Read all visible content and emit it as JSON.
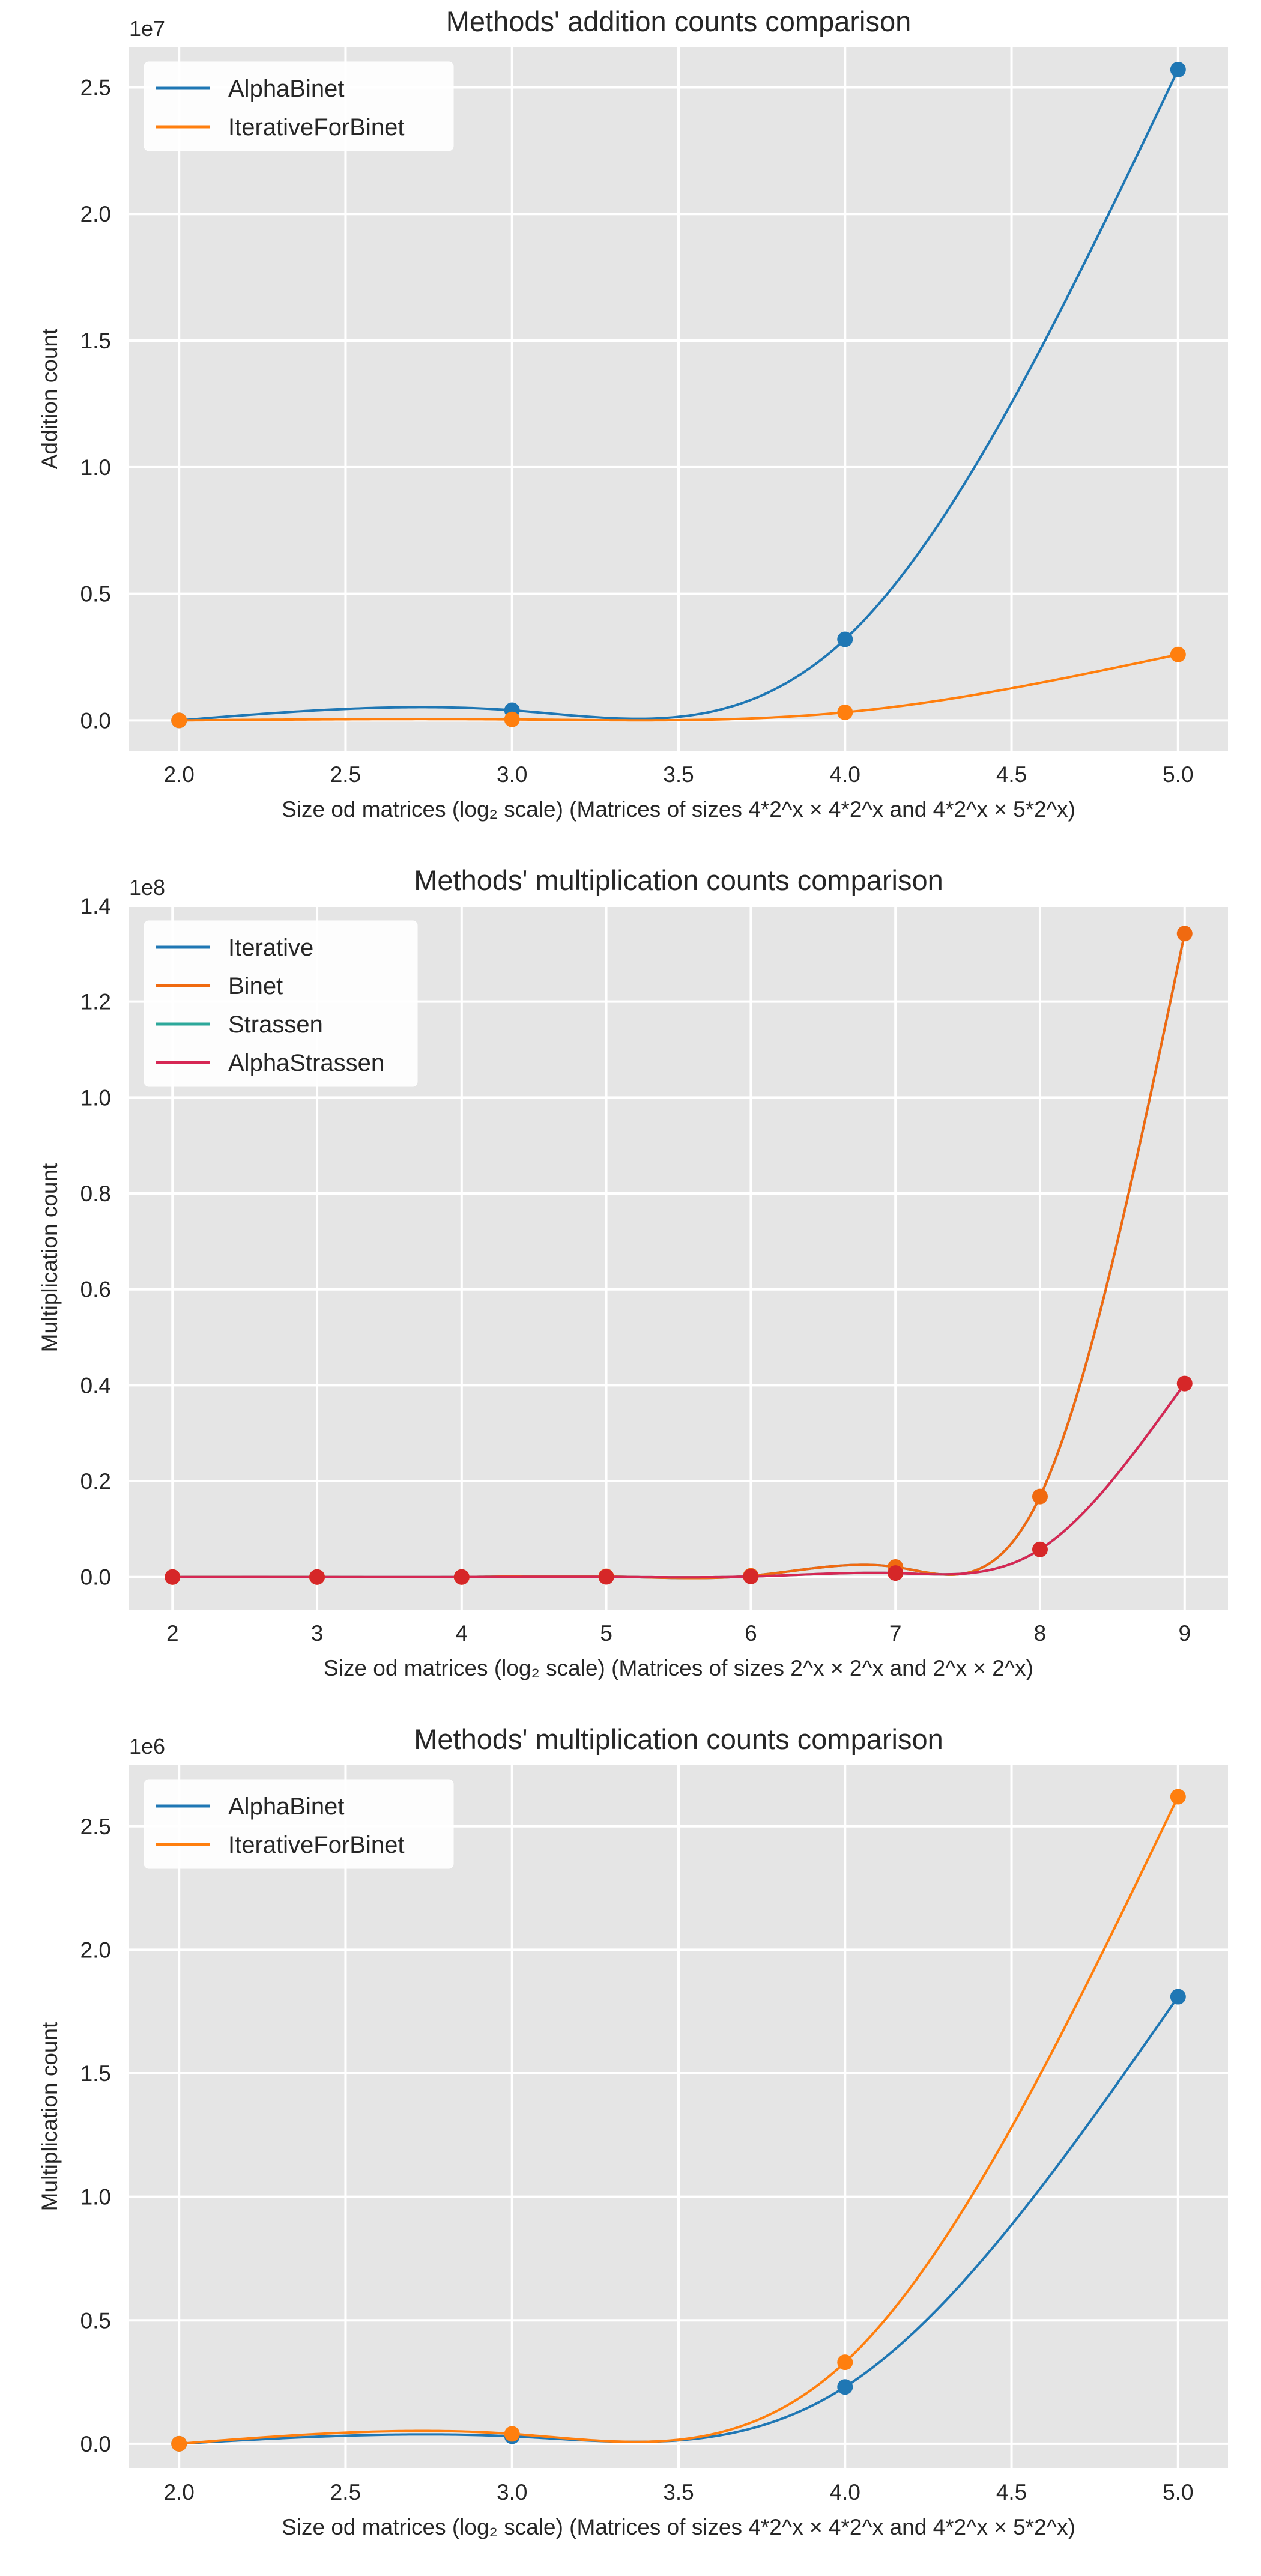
{
  "colors": {
    "plot_bg": "#e5e5e5",
    "grid": "#ffffff",
    "blue": "#1f77b4",
    "orange": "#ff7f0e",
    "dark_orange": "#f06a10",
    "teal": "#2ca89a",
    "crimson": "#d62754",
    "red": "#d62728"
  },
  "chart_data": [
    {
      "type": "line",
      "title": "Methods' addition counts comparison",
      "xlabel": "Size od matrices (log₂ scale) (Matrices of sizes 4*2^x × 4*2^x and 4*2^x × 5*2^x)",
      "ylabel": "Addition count",
      "y_scale_label": "1e7",
      "x": [
        2.0,
        3.0,
        4.0,
        5.0
      ],
      "xlim": [
        1.85,
        5.15
      ],
      "ylim": [
        -0.12,
        2.66
      ],
      "x_ticks": [
        2.0,
        2.5,
        3.0,
        3.5,
        4.0,
        4.5,
        5.0
      ],
      "x_tick_labels": [
        "2.0",
        "2.5",
        "3.0",
        "3.5",
        "4.0",
        "4.5",
        "5.0"
      ],
      "y_ticks": [
        0.0,
        0.5,
        1.0,
        1.5,
        2.0,
        2.5
      ],
      "y_tick_labels": [
        "0.0",
        "0.5",
        "1.0",
        "1.5",
        "2.0",
        "2.5"
      ],
      "grid": true,
      "legend_position": "top-left",
      "series": [
        {
          "name": "AlphaBinet",
          "values": [
            0.0,
            0.04,
            0.32,
            2.57
          ],
          "color": "#1f77b4",
          "marker": true
        },
        {
          "name": "IterativeForBinet",
          "values": [
            0.0,
            0.004,
            0.032,
            0.26
          ],
          "color": "#ff7f0e",
          "marker": true
        }
      ]
    },
    {
      "type": "line",
      "title": "Methods' multiplication counts comparison",
      "xlabel": "Size od matrices (log₂ scale) (Matrices of sizes 2^x × 2^x and 2^x × 2^x)",
      "ylabel": "Multiplication count",
      "y_scale_label": "1e8",
      "x": [
        2,
        3,
        4,
        5,
        6,
        7,
        8,
        9
      ],
      "xlim": [
        1.7,
        9.3
      ],
      "ylim": [
        -0.068,
        1.4
      ],
      "x_ticks": [
        2,
        3,
        4,
        5,
        6,
        7,
        8,
        9
      ],
      "x_tick_labels": [
        "2",
        "3",
        "4",
        "5",
        "6",
        "7",
        "8",
        "9"
      ],
      "y_ticks": [
        0.0,
        0.2,
        0.4,
        0.6,
        0.8,
        1.0,
        1.2,
        1.4
      ],
      "y_tick_labels": [
        "0.0",
        "0.2",
        "0.4",
        "0.6",
        "0.8",
        "1.0",
        "1.2",
        "1.4"
      ],
      "grid": true,
      "legend_position": "top-left",
      "series": [
        {
          "name": "Iterative",
          "values": [
            0.0,
            0.0,
            0.0,
            0.0013,
            0.0026,
            0.021,
            0.168,
            1.342
          ],
          "color": "#1f77b4",
          "marker": false
        },
        {
          "name": "Binet",
          "values": [
            0.0,
            0.0,
            0.0,
            0.0013,
            0.0026,
            0.021,
            0.168,
            1.342
          ],
          "color": "#f06a10",
          "marker": true
        },
        {
          "name": "Strassen",
          "values": [
            0.0,
            0.0,
            0.0,
            0.0003,
            0.0011,
            0.0082,
            0.0576,
            0.4035
          ],
          "color": "#2ca89a",
          "marker": false
        },
        {
          "name": "AlphaStrassen",
          "values": [
            0.0,
            0.0,
            0.0,
            0.0003,
            0.0011,
            0.0082,
            0.0576,
            0.4035
          ],
          "color": "#d62754",
          "marker": true,
          "marker_color": "#d62728"
        }
      ]
    },
    {
      "type": "line",
      "title": "Methods' multiplication counts comparison",
      "xlabel": "Size od matrices (log₂ scale) (Matrices of sizes 4*2^x × 4*2^x and 4*2^x × 5*2^x)",
      "ylabel": "Multiplication count",
      "y_scale_label": "1e6",
      "x": [
        2.0,
        3.0,
        4.0,
        5.0
      ],
      "xlim": [
        1.85,
        5.15
      ],
      "ylim": [
        -0.1,
        2.75
      ],
      "x_ticks": [
        2.0,
        2.5,
        3.0,
        3.5,
        4.0,
        4.5,
        5.0
      ],
      "x_tick_labels": [
        "2.0",
        "2.5",
        "3.0",
        "3.5",
        "4.0",
        "4.5",
        "5.0"
      ],
      "y_ticks": [
        0.0,
        0.5,
        1.0,
        1.5,
        2.0,
        2.5
      ],
      "y_tick_labels": [
        "0.0",
        "0.5",
        "1.0",
        "1.5",
        "2.0",
        "2.5"
      ],
      "grid": true,
      "legend_position": "top-left",
      "series": [
        {
          "name": "AlphaBinet",
          "values": [
            0.0,
            0.03,
            0.23,
            1.81
          ],
          "color": "#1f77b4",
          "marker": true
        },
        {
          "name": "IterativeForBinet",
          "values": [
            0.0,
            0.04,
            0.33,
            2.62
          ],
          "color": "#ff7f0e",
          "marker": true
        }
      ]
    }
  ]
}
